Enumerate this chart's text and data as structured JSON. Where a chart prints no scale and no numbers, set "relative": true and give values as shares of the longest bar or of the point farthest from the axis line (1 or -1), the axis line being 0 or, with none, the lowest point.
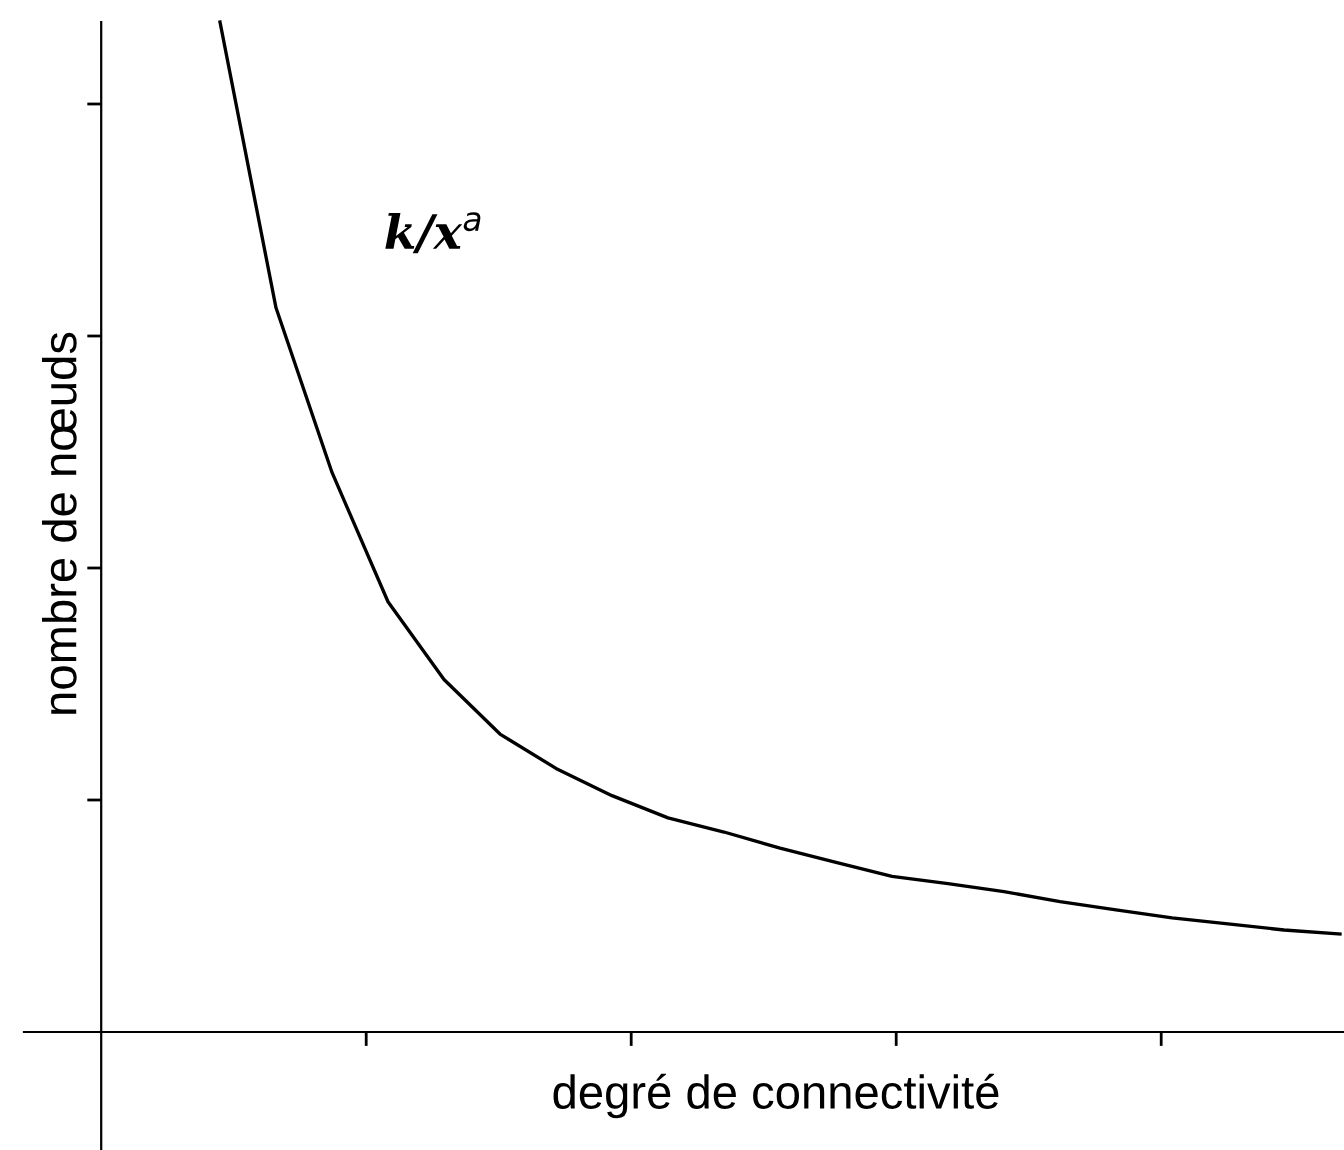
{
  "chart_data": {
    "type": "line",
    "relative": true,
    "xlabel": "degré de connectivité",
    "ylabel": "nombre de nœuds",
    "categories": [
      null,
      null,
      null,
      null,
      null,
      null,
      null,
      null,
      null,
      null,
      null,
      null,
      null,
      null,
      null,
      null,
      null,
      null,
      null,
      null,
      null
    ],
    "series": [
      {
        "color": "#000000",
        "values": [
          1,
          0.717,
          0.554,
          0.426,
          0.349,
          0.295,
          0.261,
          0.234,
          0.212,
          0.198,
          0.182,
          0.168,
          0.154,
          0.147,
          0.139,
          0.129,
          0.121,
          0.113,
          0.107,
          0.101,
          0.097
        ]
      }
    ],
    "annotations": [
      "k/x$^{a}$"
    ],
    "grid": false,
    "legend": false,
    "marker": "none",
    "line_style": "solid",
    "tick_labels": false
  }
}
